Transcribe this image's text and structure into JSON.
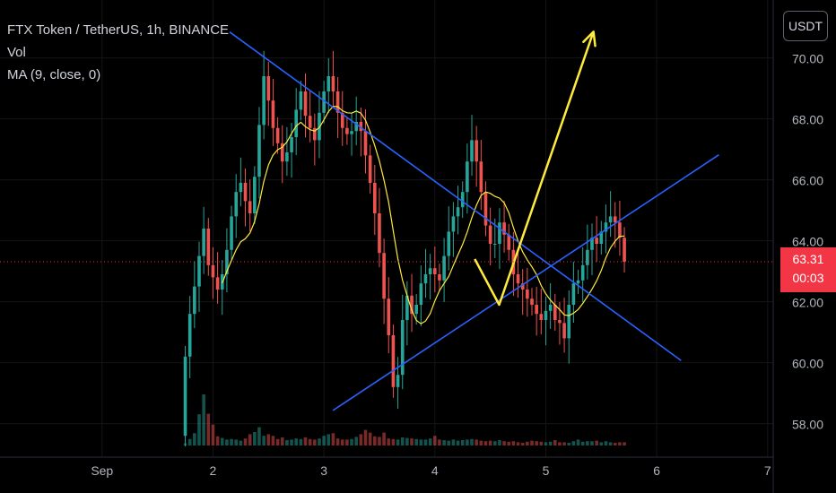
{
  "legend": {
    "symbol": "FTX Token / TetherUS, 1h, BINANCE",
    "volume_label": "Vol",
    "ma_label": "MA (9, close, 0)"
  },
  "toolbar": {
    "currency_label": "USDT"
  },
  "last_price": {
    "value": "63.31",
    "countdown": "00:03",
    "color": "#f23645"
  },
  "colors": {
    "up": "#26a69a",
    "down": "#ef5350",
    "ma": "#ffeb3b",
    "trendline": "#2962ff",
    "arrow": "#ffeb3b",
    "last_price_line": "#f23645"
  },
  "chart_data": {
    "type": "candlestick",
    "interval": "1h",
    "y_axis": {
      "ticks": [
        "58.00",
        "60.00",
        "62.00",
        "64.00",
        "66.00",
        "68.00",
        "70.00"
      ],
      "ylim": [
        56.9,
        71.9
      ]
    },
    "x_axis": {
      "ticks": [
        "Sep",
        "2",
        "3",
        "4",
        "5",
        "6",
        "7"
      ],
      "xlim_days": [
        0.08,
        7.05
      ]
    },
    "last_price": 63.31,
    "closes": [
      60.2,
      61.6,
      62.5,
      63.5,
      64.4,
      63.2,
      62.8,
      62.4,
      62.9,
      63.7,
      64.8,
      65.6,
      65.9,
      65.3,
      64.9,
      66.1,
      67.8,
      69.4,
      68.6,
      67.7,
      67.2,
      66.6,
      66.9,
      67.4,
      68.3,
      68.9,
      68.1,
      67.7,
      67.3,
      68.2,
      68.9,
      69.4,
      68.9,
      68.2,
      67.7,
      67.5,
      67.6,
      67.9,
      67.6,
      66.8,
      65.9,
      64.9,
      63.6,
      62.1,
      60.9,
      59.2,
      59.6,
      61.4,
      62.2,
      61.6,
      61.9,
      62.6,
      62.9,
      63.1,
      62.9,
      62.7,
      63.5,
      64.3,
      64.8,
      65.1,
      65.6,
      66.6,
      67.3,
      66.6,
      65.6,
      64.5,
      63.9,
      63.9,
      64.6,
      64.2,
      63.7,
      62.9,
      62.6,
      62.4,
      62.1,
      61.9,
      61.6,
      61.4,
      61.7,
      61.9,
      61.4,
      61.3,
      60.8,
      61.9,
      62.6,
      62.7,
      63.2,
      63.7,
      64.1,
      63.9,
      64.3,
      64.6,
      64.8,
      64.6,
      64.1,
      63.31
    ],
    "volumes": [
      0.4,
      1.2,
      2.3,
      5.8,
      9.5,
      5.9,
      3.9,
      1.7,
      1.4,
      1.1,
      1.2,
      1.1,
      0.9,
      1.3,
      2.1,
      2.5,
      3.4,
      1.8,
      2.1,
      1.8,
      1.2,
      1.5,
      1.0,
      1.1,
      1.3,
      1.2,
      1.5,
      1.2,
      1.1,
      1.3,
      1.8,
      2.1,
      2.3,
      1.3,
      1.1,
      1.1,
      1.2,
      1.6,
      2.1,
      2.9,
      2.4,
      1.7,
      1.6,
      2.4,
      1.3,
      1.2,
      1.1,
      1.5,
      1.4,
      1.3,
      1.2,
      1.1,
      1.1,
      1.3,
      1.8,
      1.1,
      1.0,
      0.9,
      1.1,
      0.9,
      1.0,
      1.1,
      1.2,
      1.1,
      0.9,
      0.8,
      0.9,
      0.8,
      1.0,
      0.8,
      0.7,
      0.8,
      0.6,
      0.5,
      0.7,
      0.9,
      0.8,
      0.7,
      0.6,
      0.7,
      1.0,
      0.6,
      0.6,
      0.5,
      0.8,
      1.1,
      0.7,
      0.8,
      0.8,
      0.9,
      0.6,
      0.8,
      0.6,
      0.5,
      0.6,
      0.6
    ],
    "ma_period": 9,
    "drawings": {
      "resistance": [
        [
          2.15,
          70.85
        ],
        [
          6.22,
          60.07
        ]
      ],
      "support": [
        [
          3.08,
          58.43
        ],
        [
          6.56,
          66.82
        ]
      ],
      "projection_path": [
        [
          4.36,
          63.4
        ],
        [
          4.58,
          61.9
        ],
        [
          5.43,
          70.86
        ]
      ]
    }
  }
}
